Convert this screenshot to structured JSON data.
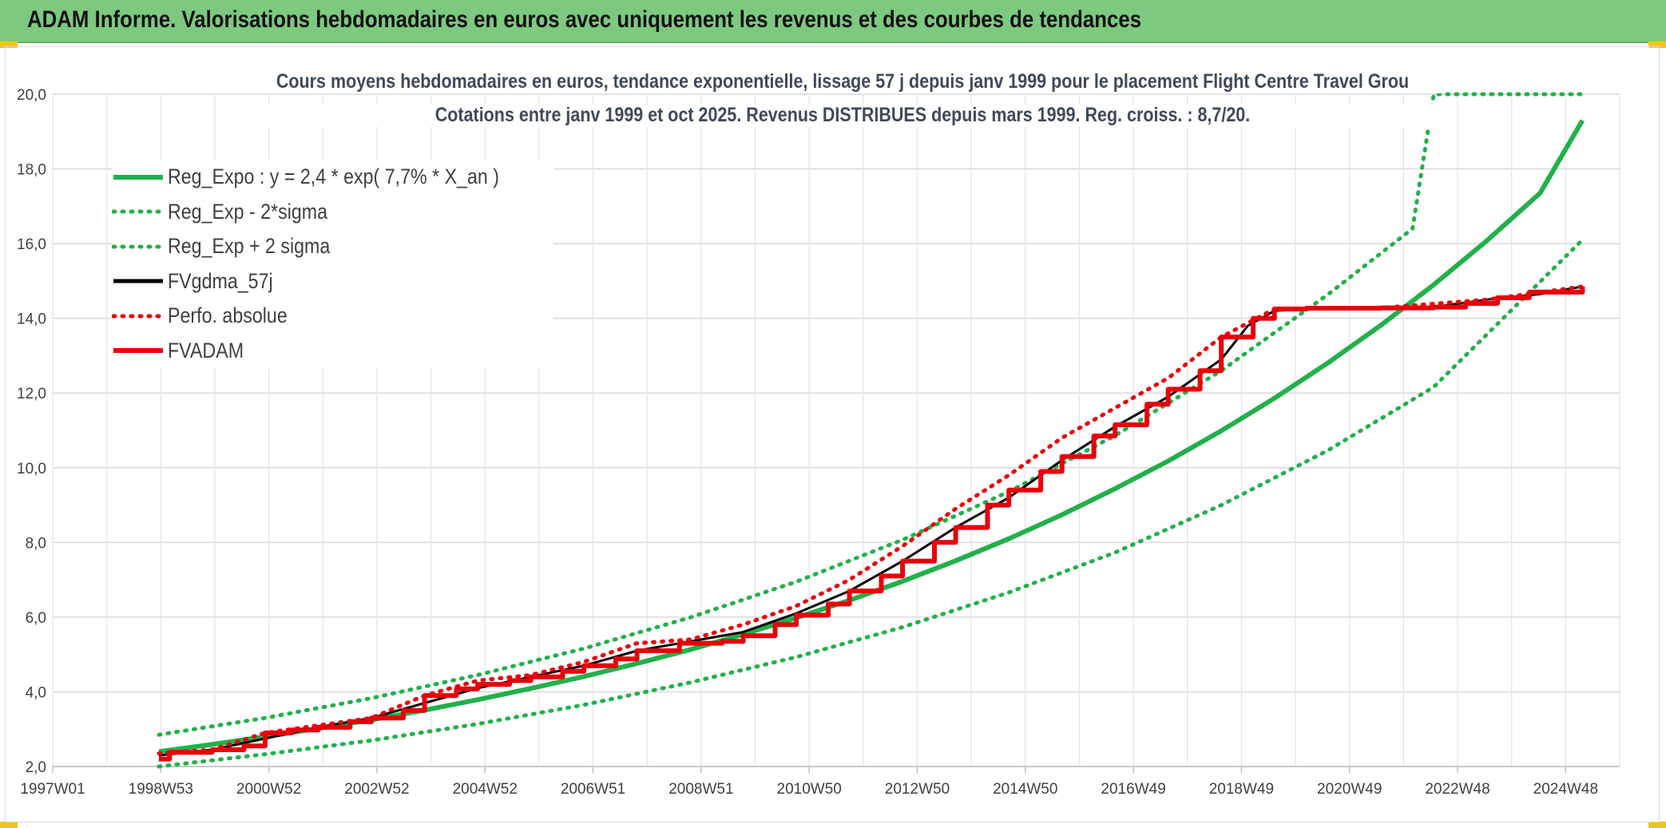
{
  "banner": {
    "title": "ADAM Informe. Valorisations hebdomadaires en euros avec uniquement les revenus et des courbes de tendances"
  },
  "chart_data": {
    "type": "line",
    "title": "Cours moyens hebdomadaires en euros, tendance exponentielle, lissage 57 j depuis janv 1999 pour le placement Flight Centre Travel Grou",
    "subtitle": "Cotations entre janv 1999 et oct 2025. Revenus DISTRIBUES depuis mars 1999. Reg. croiss. : 8,7/20.",
    "xlabel": "",
    "ylabel": "",
    "x_tick_labels": [
      "1997W01",
      "1998W53",
      "2000W52",
      "2002W52",
      "2004W52",
      "2006W51",
      "2008W51",
      "2010W50",
      "2012W50",
      "2014W50",
      "2016W49",
      "2018W49",
      "2020W49",
      "2022W48",
      "2024W48"
    ],
    "y_tick_labels": [
      "2,0",
      "4,0",
      "6,0",
      "8,0",
      "10,0",
      "12,0",
      "14,0",
      "16,0",
      "18,0",
      "20,0"
    ],
    "xlim": [
      1997.0,
      2026.5
    ],
    "ylim": [
      2.0,
      20.0
    ],
    "grid": true,
    "legend_position": "top-left",
    "series": [
      {
        "name": "Reg_Expo : y = 2,4 * exp( 7,7% *  X_an )",
        "color": "#22b04b",
        "style": "solid",
        "x": [
          1999.0,
          2000.0,
          2001.0,
          2002.0,
          2003.0,
          2004.0,
          2005.0,
          2006.0,
          2007.0,
          2008.0,
          2009.0,
          2010.0,
          2011.0,
          2012.0,
          2013.0,
          2014.0,
          2015.0,
          2016.0,
          2017.0,
          2018.0,
          2019.0,
          2020.0,
          2021.0,
          2022.0,
          2023.0,
          2024.0,
          2025.0,
          2025.8
        ],
        "y": [
          2.4,
          2.59,
          2.8,
          3.02,
          3.25,
          3.51,
          3.79,
          4.09,
          4.41,
          4.76,
          5.13,
          5.54,
          5.98,
          6.45,
          6.96,
          7.51,
          8.1,
          8.74,
          9.44,
          10.18,
          10.99,
          11.86,
          12.8,
          13.81,
          14.9,
          16.08,
          17.35,
          19.3
        ]
      },
      {
        "name": "Reg_Exp - 2*sigma",
        "color": "#22b04b",
        "style": "dotted",
        "x": [
          1999.0,
          2001.0,
          2003.0,
          2005.0,
          2007.0,
          2009.0,
          2011.0,
          2013.0,
          2015.0,
          2017.0,
          2019.0,
          2021.0,
          2023.0,
          2025.8
        ],
        "y": [
          2.0,
          2.33,
          2.7,
          3.14,
          3.65,
          4.25,
          4.93,
          5.73,
          6.66,
          7.73,
          9.0,
          10.46,
          12.16,
          16.1
        ]
      },
      {
        "name": "Reg_Exp + 2 sigma",
        "color": "#22b04b",
        "style": "dotted",
        "x": [
          1999.0,
          2001.0,
          2003.0,
          2005.0,
          2007.0,
          2009.0,
          2011.0,
          2013.0,
          2015.0,
          2017.0,
          2019.0,
          2021.0,
          2022.6,
          2023.0,
          2025.8
        ],
        "y": [
          2.85,
          3.3,
          3.83,
          4.45,
          5.16,
          5.99,
          6.95,
          8.07,
          9.36,
          10.86,
          12.6,
          14.63,
          16.4,
          20.0,
          20.0
        ]
      },
      {
        "name": "FVgdma_57j",
        "color": "#000000",
        "style": "solid",
        "x": [
          1999.0,
          2000.0,
          2001.0,
          2002.0,
          2003.0,
          2004.0,
          2005.0,
          2006.0,
          2007.0,
          2008.0,
          2009.0,
          2010.0,
          2011.0,
          2012.0,
          2013.0,
          2014.0,
          2015.0,
          2016.0,
          2017.0,
          2018.0,
          2019.0,
          2019.5,
          2020.0,
          2021.0,
          2022.0,
          2023.0,
          2024.0,
          2025.0,
          2025.8
        ],
        "y": [
          2.3,
          2.45,
          2.75,
          3.05,
          3.3,
          3.7,
          4.1,
          4.4,
          4.7,
          5.1,
          5.35,
          5.6,
          6.1,
          6.7,
          7.5,
          8.4,
          9.2,
          10.2,
          11.1,
          11.9,
          12.9,
          13.8,
          14.2,
          14.28,
          14.28,
          14.3,
          14.5,
          14.65,
          14.85
        ]
      },
      {
        "name": "Perfo. absolue",
        "color": "#e8000b",
        "style": "dotted",
        "x": [
          1999.0,
          2000.0,
          2001.0,
          2002.0,
          2003.0,
          2004.0,
          2005.0,
          2006.0,
          2007.0,
          2008.0,
          2009.0,
          2010.0,
          2011.0,
          2012.0,
          2013.0,
          2014.0,
          2015.0,
          2016.0,
          2017.0,
          2018.0,
          2019.0,
          2020.0,
          2022.0,
          2024.0,
          2025.8
        ],
        "y": [
          2.35,
          2.45,
          2.9,
          3.1,
          3.3,
          3.9,
          4.3,
          4.45,
          4.8,
          5.3,
          5.4,
          5.8,
          6.3,
          7.0,
          7.9,
          8.9,
          9.8,
          10.8,
          11.6,
          12.4,
          13.5,
          14.25,
          14.28,
          14.5,
          14.85
        ]
      },
      {
        "name": "FVADAM",
        "color": "#e8000b",
        "style": "step",
        "x": [
          1999.0,
          1999.2,
          2000.0,
          2000.6,
          2001.0,
          2001.5,
          2002.0,
          2002.6,
          2003.0,
          2003.6,
          2004.0,
          2004.6,
          2005.0,
          2005.6,
          2006.0,
          2006.6,
          2007.0,
          2007.6,
          2008.0,
          2008.8,
          2009.6,
          2010.0,
          2010.6,
          2011.0,
          2011.6,
          2012.0,
          2012.6,
          2013.0,
          2013.6,
          2014.0,
          2014.6,
          2015.0,
          2015.6,
          2016.0,
          2016.6,
          2017.0,
          2017.6,
          2018.0,
          2018.6,
          2019.0,
          2019.6,
          2020.0,
          2020.6,
          2022.0,
          2023.0,
          2023.6,
          2024.2,
          2024.8,
          2025.8
        ],
        "y": [
          2.2,
          2.38,
          2.45,
          2.55,
          2.9,
          2.98,
          3.05,
          3.2,
          3.3,
          3.5,
          3.9,
          4.08,
          4.2,
          4.3,
          4.4,
          4.55,
          4.7,
          4.88,
          5.1,
          5.3,
          5.35,
          5.5,
          5.8,
          6.05,
          6.35,
          6.7,
          7.1,
          7.5,
          8.0,
          8.4,
          9.0,
          9.4,
          9.9,
          10.3,
          10.85,
          11.15,
          11.7,
          12.1,
          12.6,
          13.5,
          14.0,
          14.25,
          14.27,
          14.28,
          14.3,
          14.4,
          14.55,
          14.7,
          14.85
        ]
      }
    ]
  }
}
